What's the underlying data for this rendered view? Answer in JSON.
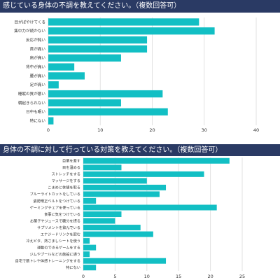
{
  "chart_data": [
    {
      "type": "bar",
      "orientation": "horizontal",
      "title": "感じている身体の不調を教えてください。（複数回答可）",
      "categories": [
        "目がぼやけてくる",
        "集中力が続かない",
        "反応が鈍い",
        "首が痛い",
        "肩が痛い",
        "背中が痛い",
        "腰が痛い",
        "足が痛い",
        "睡眠の質が悪い",
        "朝起きられない",
        "日中も眠い",
        "特にない"
      ],
      "values": [
        29,
        32,
        19,
        19,
        14,
        5,
        7,
        2,
        22,
        14,
        23,
        1
      ],
      "xticks": [
        0,
        10,
        20,
        30,
        40
      ],
      "xlim": [
        0,
        40
      ],
      "grid": "vertical",
      "bar_color": "#12bfc4",
      "title_bg": "#2a3a64"
    },
    {
      "type": "bar",
      "orientation": "horizontal",
      "title": "身体の不調に対して行っている対策を教えてください。（複数回答可）",
      "categories": [
        "目薬を差す",
        "目を温める",
        "ストレッチをする",
        "マッサージをする",
        "こまめに休憩を取る",
        "ブルーライトカットをしている",
        "姿勢矯正ベルトをつけている",
        "ゲーミングチェアを使っている",
        "食事に気をつけている",
        "お菓子やジュースで糖分を摂る",
        "サプリメントを飲んでいる",
        "エナジードリンクを飲む",
        "冷えピタ、熱さましシートを使う",
        "運動のできるゲームをする",
        "ジムやプールなどの施設に通う",
        "自宅で筋トレや体感トレーニングをする",
        "特にない"
      ],
      "values": [
        23,
        6,
        19,
        10,
        13,
        12,
        2,
        21,
        6,
        5,
        9,
        11,
        1,
        2,
        1,
        13,
        2
      ],
      "xticks": [
        0,
        5,
        10,
        15,
        20,
        25
      ],
      "xlim": [
        0,
        25
      ],
      "grid": "vertical",
      "bar_color": "#12bfc4",
      "title_bg": "#2a3a64"
    }
  ]
}
